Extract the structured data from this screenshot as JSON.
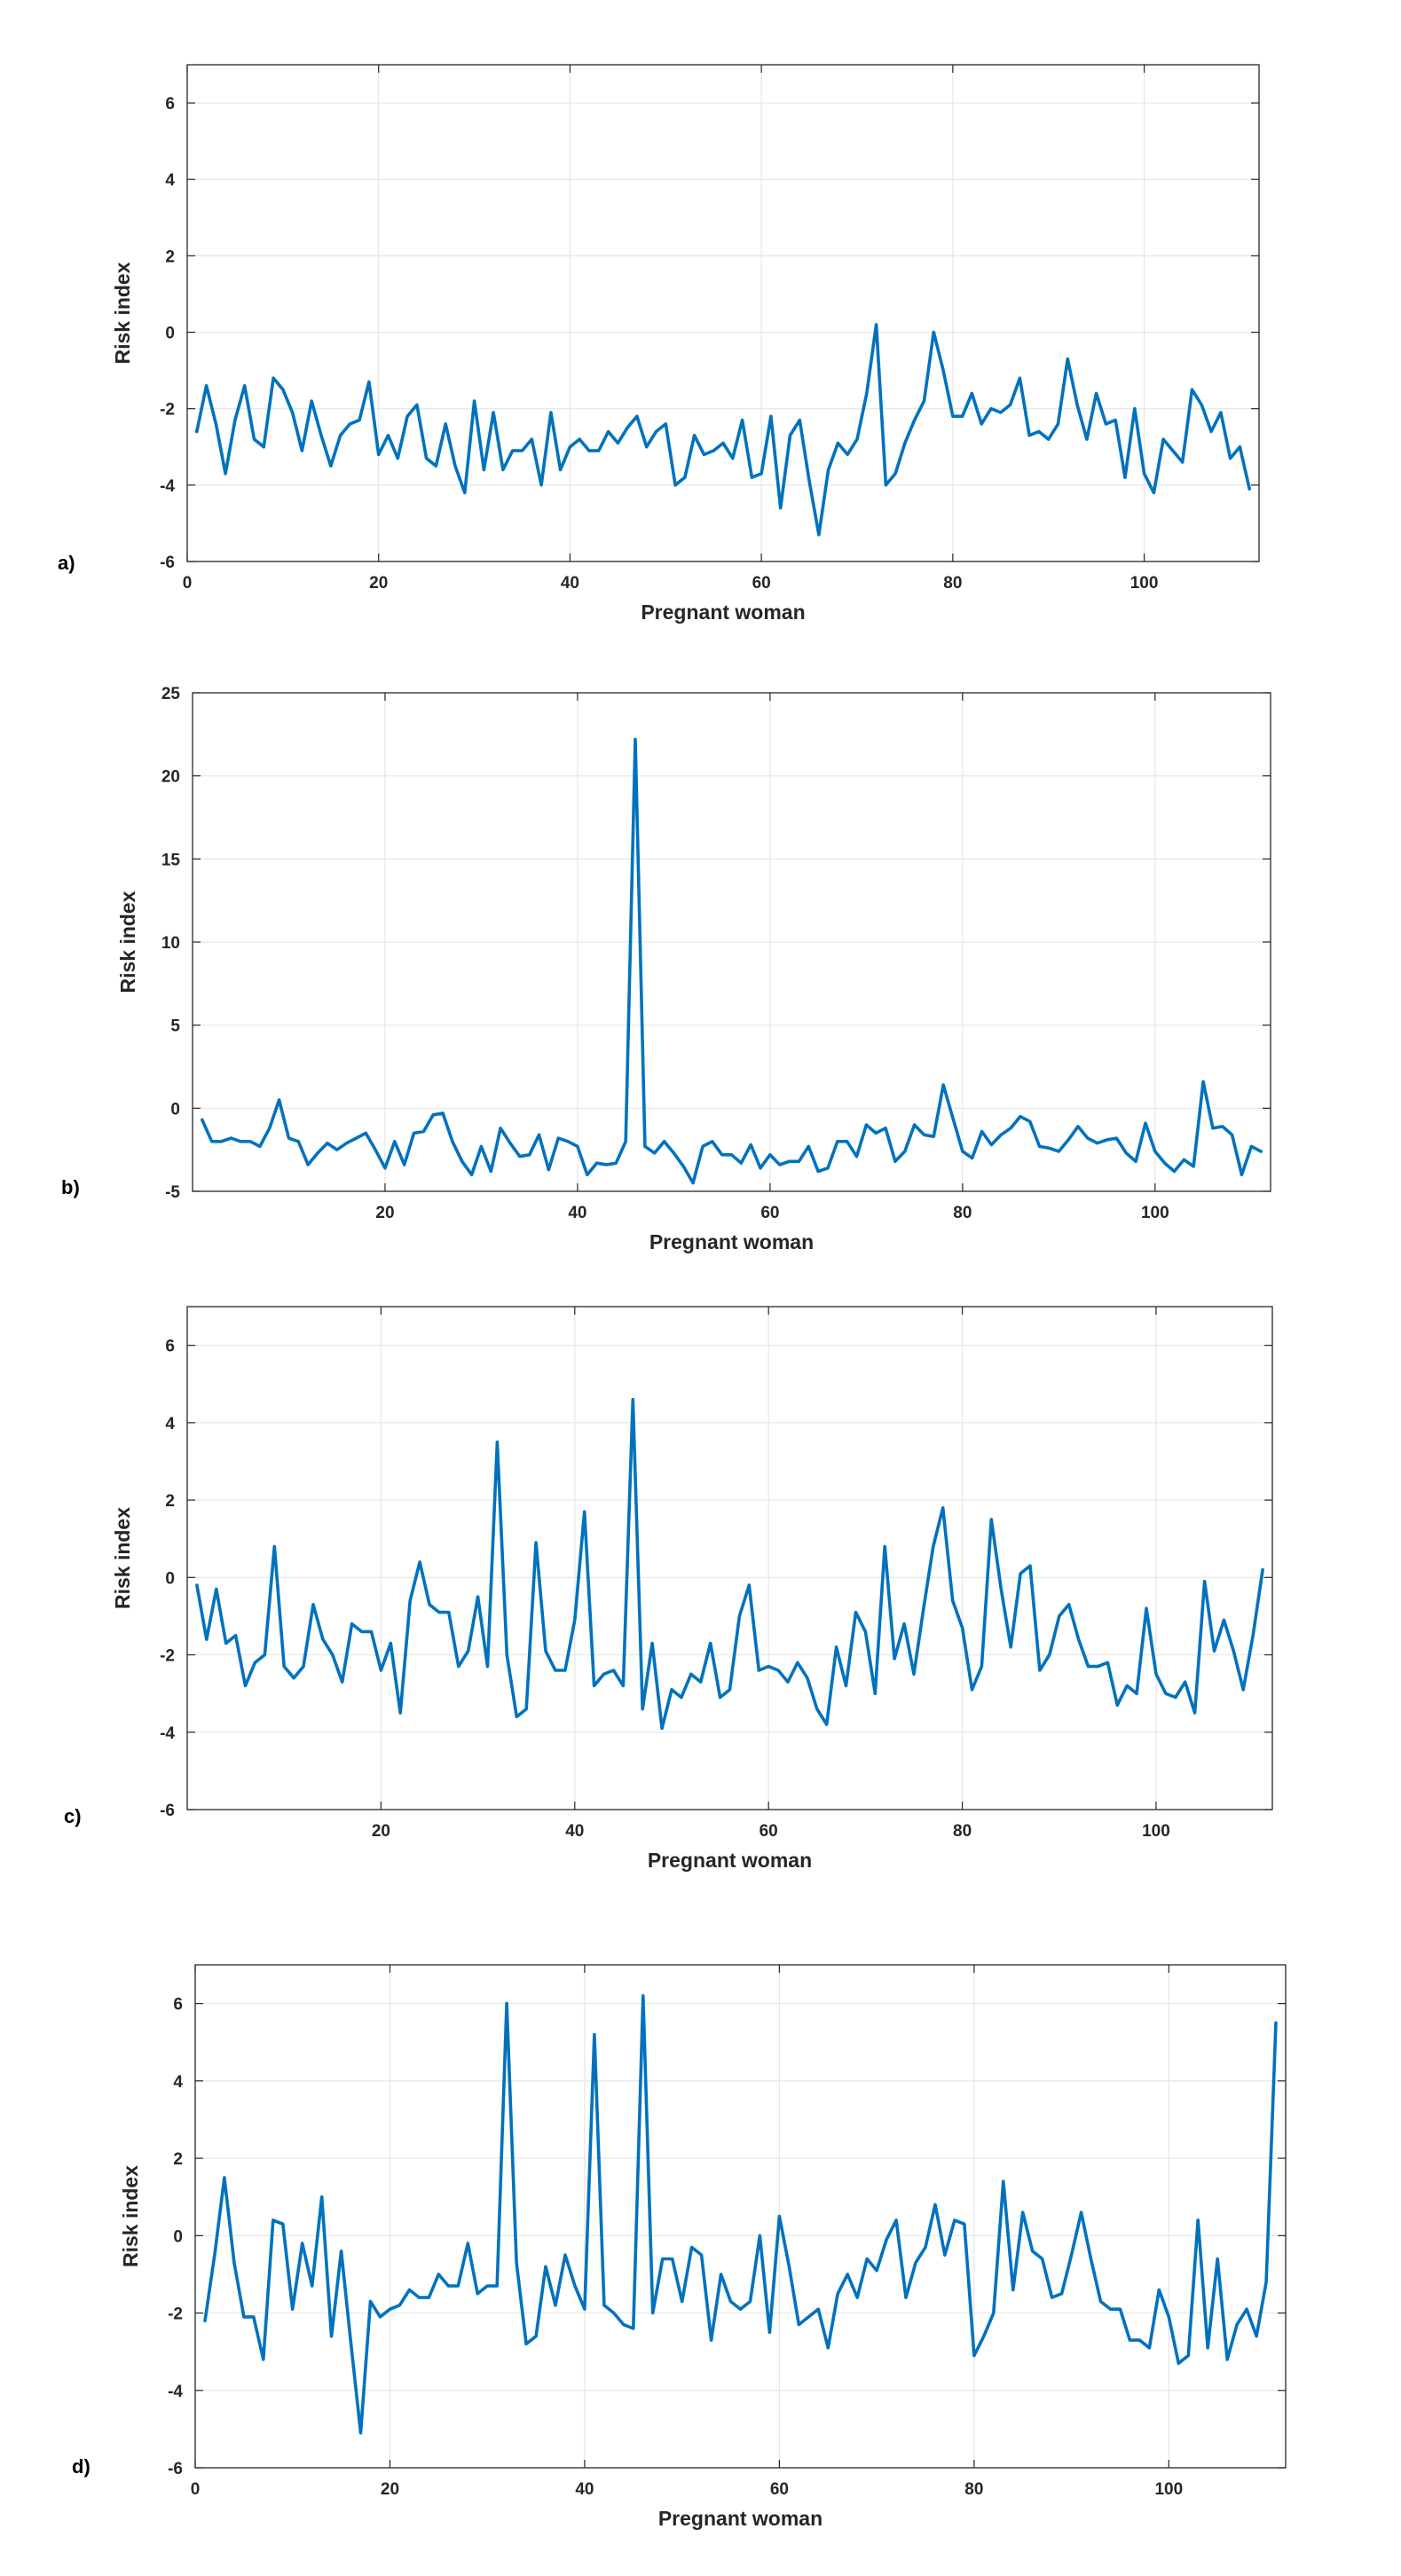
{
  "chart_data": [
    {
      "type": "line",
      "panel_label": "a)",
      "xlabel": "Pregnant woman",
      "ylabel": "Risk index",
      "xlim": [
        0,
        112
      ],
      "ylim": [
        -6,
        7
      ],
      "xticks": [
        0,
        20,
        40,
        60,
        80,
        100
      ],
      "yticks": [
        -6,
        -4,
        -2,
        0,
        2,
        4,
        6
      ],
      "grid": true,
      "color": "#0072BD",
      "series": [
        {
          "values": [
            -2.6,
            -1.4,
            -2.4,
            -3.7,
            -2.3,
            -1.4,
            -2.8,
            -3.0,
            -1.2,
            -1.5,
            -2.1,
            -3.1,
            -1.8,
            -2.7,
            -3.5,
            -2.7,
            -2.4,
            -2.3,
            -1.3,
            -3.2,
            -2.7,
            -3.3,
            -2.2,
            -1.9,
            -3.3,
            -3.5,
            -2.4,
            -3.5,
            -4.2,
            -1.8,
            -3.6,
            -2.1,
            -3.6,
            -3.1,
            -3.1,
            -2.8,
            -4.0,
            -2.1,
            -3.6,
            -3.0,
            -2.8,
            -3.1,
            -3.1,
            -2.6,
            -2.9,
            -2.5,
            -2.2,
            -3.0,
            -2.6,
            -2.4,
            -4.0,
            -3.8,
            -2.7,
            -3.2,
            -3.1,
            -2.9,
            -3.3,
            -2.3,
            -3.8,
            -3.7,
            -2.2,
            -4.6,
            -2.7,
            -2.3,
            -3.9,
            -5.3,
            -3.6,
            -2.9,
            -3.2,
            -2.8,
            -1.6,
            0.2,
            -4.0,
            -3.7,
            -2.9,
            -2.3,
            -1.8,
            0.0,
            -1.0,
            -2.2,
            -2.2,
            -1.6,
            -2.4,
            -2.0,
            -2.1,
            -1.9,
            -1.2,
            -2.7,
            -2.6,
            -2.8,
            -2.4,
            -0.7,
            -1.9,
            -2.8,
            -1.6,
            -2.4,
            -2.3,
            -3.8,
            -2.0,
            -3.7,
            -4.2,
            -2.8,
            -3.1,
            -3.4,
            -1.5,
            -1.9,
            -2.6,
            -2.1,
            -3.3,
            -3.0,
            -4.1
          ]
        }
      ]
    },
    {
      "type": "line",
      "panel_label": "b)",
      "xlabel": "Pregnant woman",
      "ylabel": "Risk index",
      "xlim": [
        0,
        112
      ],
      "ylim": [
        -5,
        25
      ],
      "xticks": [
        20,
        40,
        60,
        80,
        100
      ],
      "yticks": [
        -5,
        0,
        5,
        10,
        15,
        20,
        25
      ],
      "grid": true,
      "color": "#0072BD",
      "series": [
        {
          "values": [
            -0.7,
            -2.0,
            -2.0,
            -1.8,
            -2.0,
            -2.0,
            -2.3,
            -1.2,
            0.5,
            -1.8,
            -2.0,
            -3.4,
            -2.7,
            -2.1,
            -2.5,
            -2.1,
            -1.8,
            -1.5,
            -2.5,
            -3.6,
            -2.0,
            -3.4,
            -1.5,
            -1.4,
            -0.4,
            -0.3,
            -2.0,
            -3.2,
            -4.0,
            -2.3,
            -3.8,
            -1.2,
            -2.1,
            -2.9,
            -2.8,
            -1.6,
            -3.7,
            -1.8,
            -2.0,
            -2.3,
            -4.0,
            -3.3,
            -3.4,
            -3.3,
            -2.0,
            22.2,
            -2.3,
            -2.7,
            -2.0,
            -2.7,
            -3.5,
            -4.5,
            -2.3,
            -2.0,
            -2.8,
            -2.8,
            -3.3,
            -2.2,
            -3.6,
            -2.8,
            -3.4,
            -3.2,
            -3.2,
            -2.3,
            -3.8,
            -3.6,
            -2.0,
            -2.0,
            -2.9,
            -1.0,
            -1.5,
            -1.2,
            -3.2,
            -2.6,
            -1.0,
            -1.6,
            -1.7,
            1.4,
            -0.6,
            -2.6,
            -3.0,
            -1.4,
            -2.2,
            -1.6,
            -1.2,
            -0.5,
            -0.8,
            -2.3,
            -2.4,
            -2.6,
            -1.9,
            -1.1,
            -1.8,
            -2.1,
            -1.9,
            -1.8,
            -2.7,
            -3.2,
            -0.9,
            -2.6,
            -3.3,
            -3.8,
            -3.1,
            -3.5,
            1.6,
            -1.2,
            -1.1,
            -1.6,
            -4.0,
            -2.3,
            -2.6
          ]
        }
      ]
    },
    {
      "type": "line",
      "panel_label": "c)",
      "xlabel": "Pregnant woman",
      "ylabel": "Risk index",
      "xlim": [
        0,
        112
      ],
      "ylim": [
        -6,
        7
      ],
      "xticks": [
        20,
        40,
        60,
        80,
        100
      ],
      "yticks": [
        -6,
        -4,
        -2,
        0,
        2,
        4,
        6
      ],
      "grid": true,
      "color": "#0072BD",
      "series": [
        {
          "values": [
            -0.2,
            -1.6,
            -0.3,
            -1.7,
            -1.5,
            -2.8,
            -2.2,
            -2.0,
            0.8,
            -2.3,
            -2.6,
            -2.3,
            -0.7,
            -1.6,
            -2.0,
            -2.7,
            -1.2,
            -1.4,
            -1.4,
            -2.4,
            -1.7,
            -3.5,
            -0.6,
            0.4,
            -0.7,
            -0.9,
            -0.9,
            -2.3,
            -1.9,
            -0.5,
            -2.3,
            3.5,
            -2.0,
            -3.6,
            -3.4,
            0.9,
            -1.9,
            -2.4,
            -2.4,
            -1.1,
            1.7,
            -2.8,
            -2.5,
            -2.4,
            -2.8,
            4.6,
            -3.4,
            -1.7,
            -3.9,
            -2.9,
            -3.1,
            -2.5,
            -2.7,
            -1.7,
            -3.1,
            -2.9,
            -1.0,
            -0.2,
            -2.4,
            -2.3,
            -2.4,
            -2.7,
            -2.2,
            -2.6,
            -3.4,
            -3.8,
            -1.8,
            -2.8,
            -0.9,
            -1.4,
            -3.0,
            0.8,
            -2.1,
            -1.2,
            -2.5,
            -0.8,
            0.8,
            1.8,
            -0.6,
            -1.3,
            -2.9,
            -2.3,
            1.5,
            -0.3,
            -1.8,
            0.1,
            0.3,
            -2.4,
            -2.0,
            -1.0,
            -0.7,
            -1.6,
            -2.3,
            -2.3,
            -2.2,
            -3.3,
            -2.8,
            -3.0,
            -0.8,
            -2.5,
            -3.0,
            -3.1,
            -2.7,
            -3.5,
            -0.1,
            -1.9,
            -1.1,
            -1.9,
            -2.9,
            -1.5,
            0.2
          ]
        }
      ]
    },
    {
      "type": "line",
      "panel_label": "d)",
      "xlabel": "Pregnant woman",
      "ylabel": "Risk index",
      "xlim": [
        0,
        112
      ],
      "ylim": [
        -6,
        7
      ],
      "xticks": [
        0,
        20,
        40,
        60,
        80,
        100
      ],
      "yticks": [
        -6,
        -4,
        -2,
        0,
        2,
        4,
        6
      ],
      "grid": true,
      "color": "#0072BD",
      "series": [
        {
          "values": [
            -2.2,
            -0.5,
            1.5,
            -0.7,
            -2.1,
            -2.1,
            -3.2,
            0.4,
            0.3,
            -1.9,
            -0.2,
            -1.3,
            1.0,
            -2.6,
            -0.4,
            -2.8,
            -5.1,
            -1.7,
            -2.1,
            -1.9,
            -1.8,
            -1.4,
            -1.6,
            -1.6,
            -1.0,
            -1.3,
            -1.3,
            -0.2,
            -1.5,
            -1.3,
            -1.3,
            6.0,
            -0.7,
            -2.8,
            -2.6,
            -0.8,
            -1.8,
            -0.5,
            -1.3,
            -1.9,
            5.2,
            -1.8,
            -2.0,
            -2.3,
            -2.4,
            6.2,
            -2.0,
            -0.6,
            -0.6,
            -1.7,
            -0.3,
            -0.5,
            -2.7,
            -1.0,
            -1.7,
            -1.9,
            -1.7,
            0.0,
            -2.5,
            0.5,
            -0.8,
            -2.3,
            -2.1,
            -1.9,
            -2.9,
            -1.5,
            -1.0,
            -1.6,
            -0.6,
            -0.9,
            -0.1,
            0.4,
            -1.6,
            -0.7,
            -0.3,
            0.8,
            -0.5,
            0.4,
            0.3,
            -3.1,
            -2.6,
            -2.0,
            1.4,
            -1.4,
            0.6,
            -0.4,
            -0.6,
            -1.6,
            -1.5,
            -0.5,
            0.6,
            -0.6,
            -1.7,
            -1.9,
            -1.9,
            -2.7,
            -2.7,
            -2.9,
            -1.4,
            -2.1,
            -3.3,
            -3.1,
            0.4,
            -2.9,
            -0.6,
            -3.2,
            -2.3,
            -1.9,
            -2.6,
            -1.2,
            5.5
          ]
        }
      ]
    }
  ]
}
